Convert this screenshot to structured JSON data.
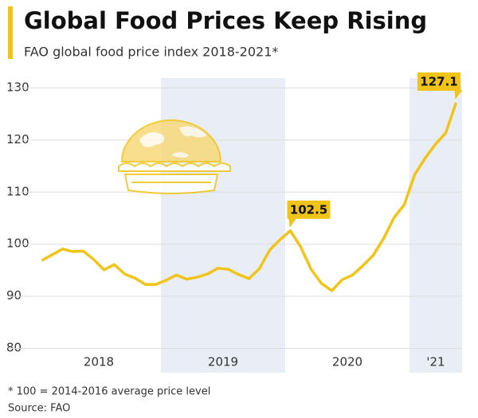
{
  "chart_data": {
    "type": "line",
    "title": "Global Food Prices Keep Rising",
    "subtitle": "FAO global food price index 2018-2021*",
    "x_labels": [
      "2018",
      "2019",
      "2020",
      "'21"
    ],
    "shaded_years": [
      1,
      3
    ],
    "values": [
      96.8,
      97.9,
      99.0,
      98.5,
      98.6,
      97.0,
      95.0,
      96.0,
      94.2,
      93.4,
      92.2,
      92.2,
      93.0,
      94.0,
      93.2,
      93.6,
      94.2,
      95.3,
      95.1,
      94.1,
      93.3,
      95.2,
      98.8,
      100.8,
      102.5,
      99.4,
      95.1,
      92.4,
      91.0,
      93.1,
      94.0,
      95.8,
      97.8,
      101.0,
      105.0,
      107.5,
      113.3,
      116.4,
      119.1,
      121.3,
      127.1
    ],
    "labeled_points": [
      24,
      40
    ],
    "color": "#f0c419",
    "ylim": [
      80,
      130
    ],
    "yticks": [
      80,
      90,
      100,
      110,
      120,
      130
    ],
    "grid": true,
    "footnote": "* 100 = 2014-2016 average price level",
    "source": "Source: FAO"
  }
}
